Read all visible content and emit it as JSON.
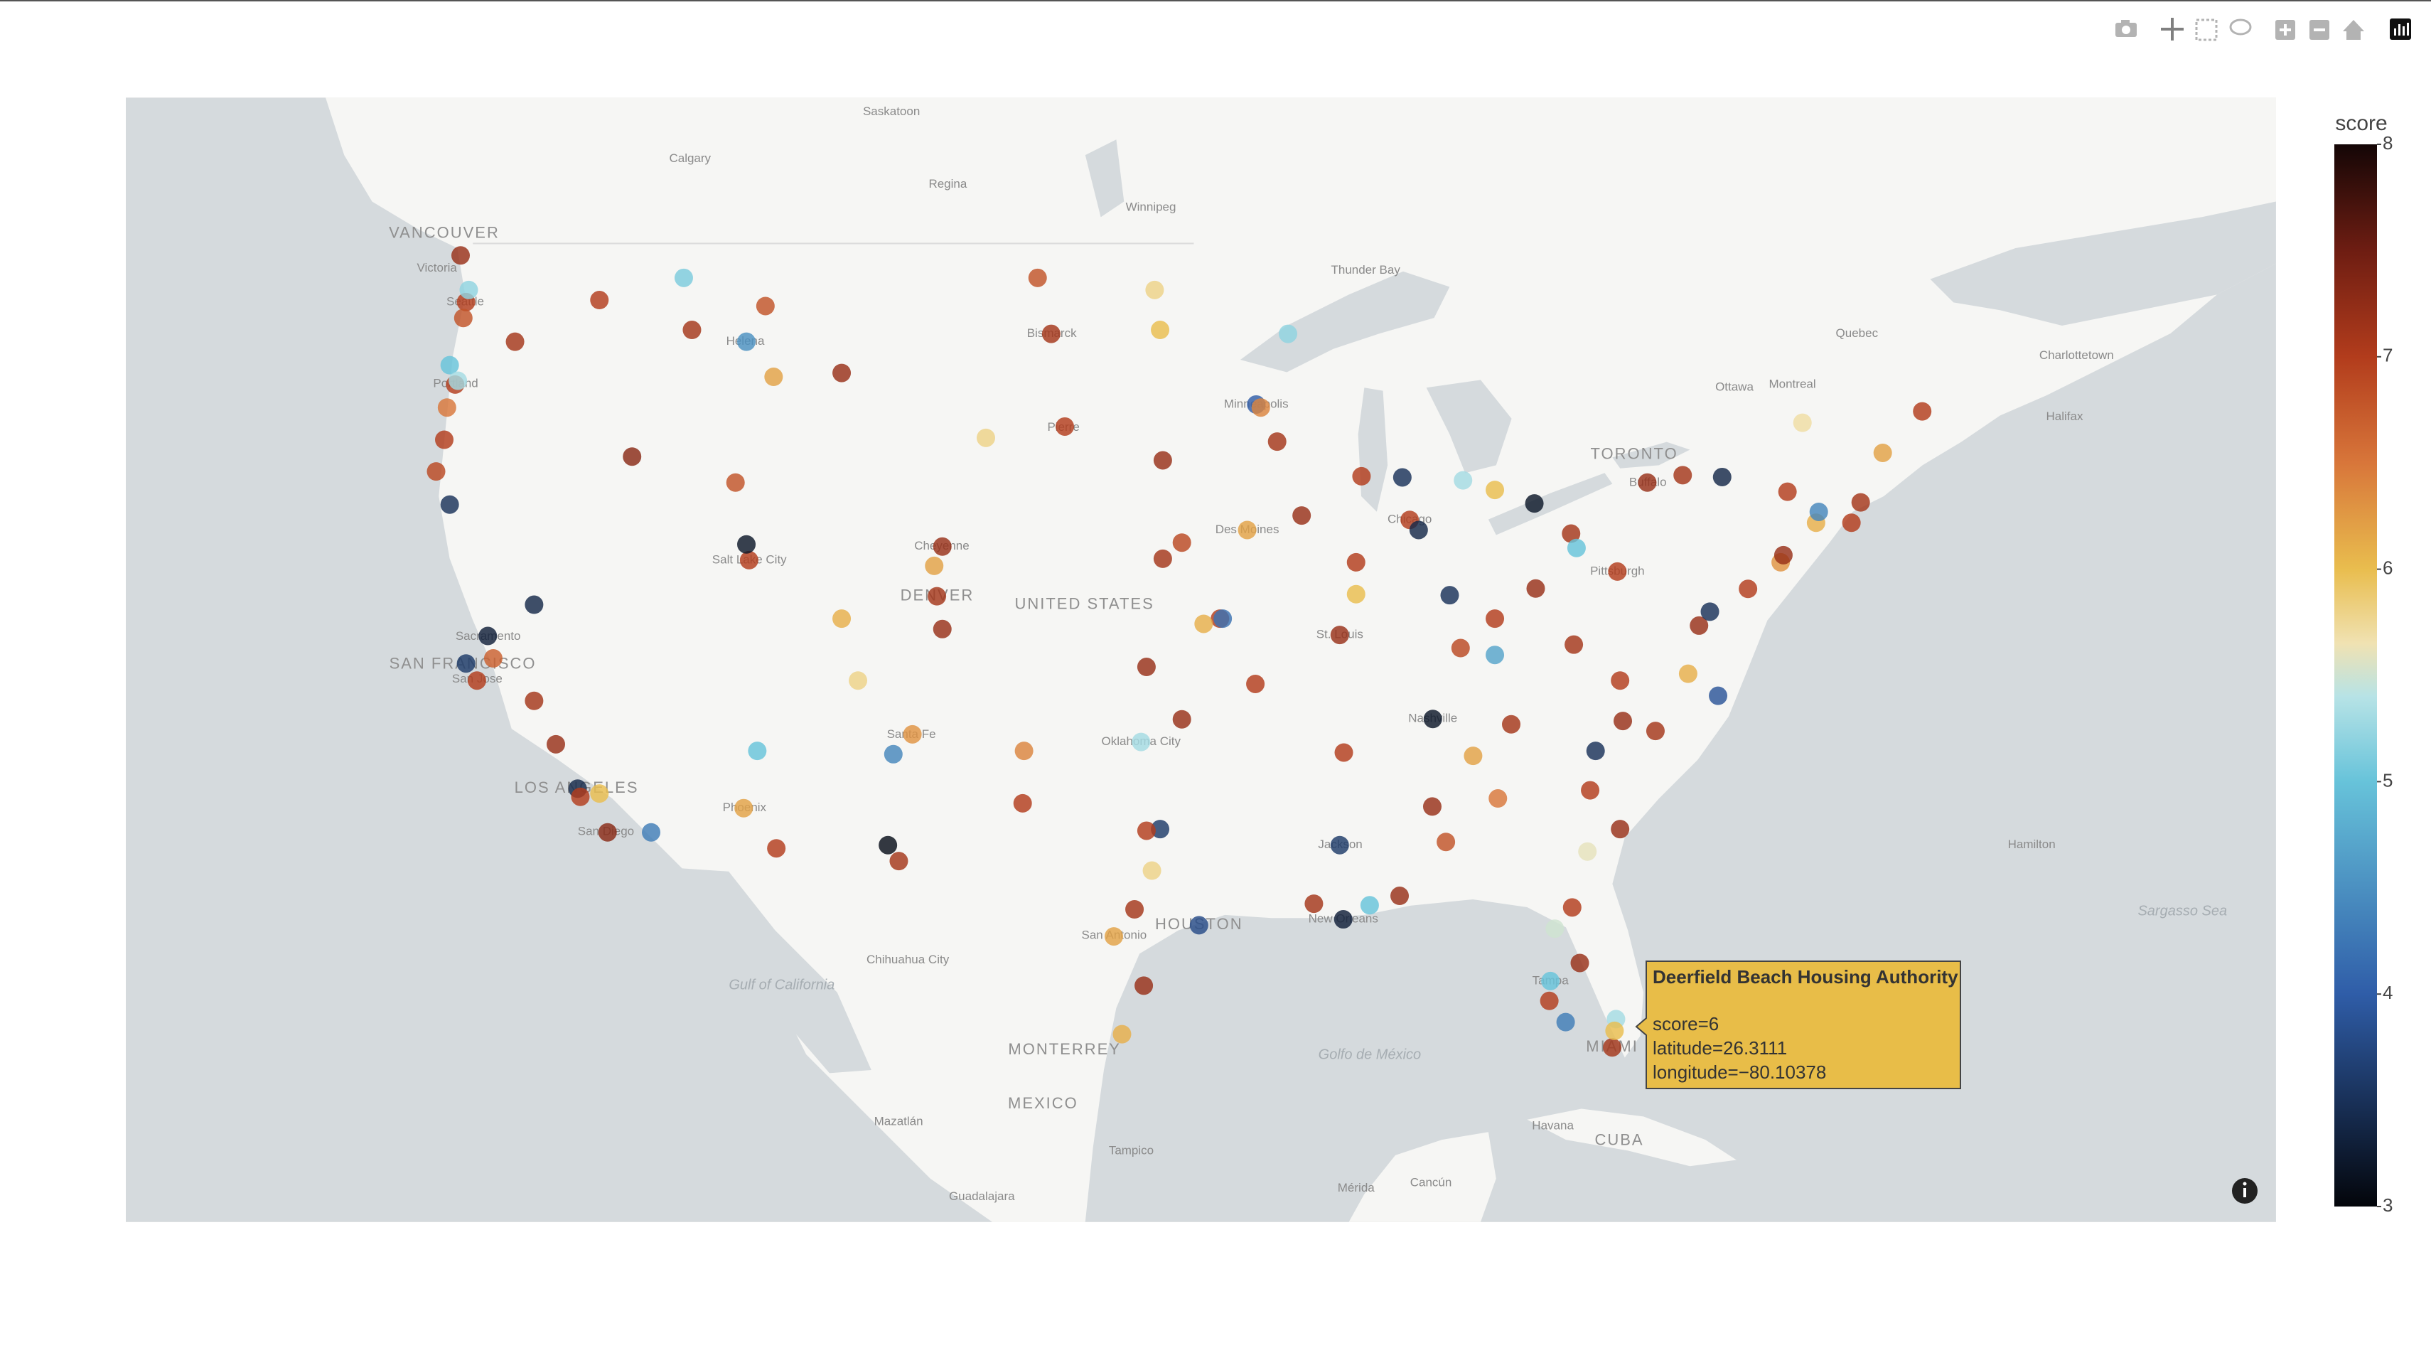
{
  "chart_data": {
    "type": "scattermap",
    "lonlim": [
      -134.8,
      -55.8
    ],
    "latlim": [
      19.8,
      52.46
    ],
    "clim": [
      3,
      8
    ],
    "colorscale": [
      [
        0,
        "#03050a"
      ],
      [
        0.2,
        "#2f5da8"
      ],
      [
        0.4,
        "#67c3da"
      ],
      [
        0.48,
        "#b7e3e6"
      ],
      [
        0.53,
        "#f0e2b2"
      ],
      [
        0.6,
        "#e9bd4e"
      ],
      [
        0.7,
        "#d8763a"
      ],
      [
        0.8,
        "#b23c1c"
      ],
      [
        0.9,
        "#6e1d12"
      ],
      [
        1,
        "#140606"
      ]
    ],
    "colorbar": {
      "title": "score",
      "ticks": [
        3,
        4,
        5,
        6,
        7,
        8
      ]
    },
    "labels": [
      {
        "text": "Saskatoon",
        "lon": -106.67,
        "lat": 52.13
      },
      {
        "text": "Calgary",
        "lon": -114.07,
        "lat": 51.05
      },
      {
        "text": "Regina",
        "lon": -104.6,
        "lat": 50.45
      },
      {
        "text": "Winnipeg",
        "lon": -97.14,
        "lat": 49.9
      },
      {
        "text": "VANCOUVER",
        "lon": -123.1,
        "lat": 49.28
      },
      {
        "text": "Victoria",
        "lon": -123.37,
        "lat": 48.43
      },
      {
        "text": "Seattle",
        "lon": -122.33,
        "lat": 47.6
      },
      {
        "text": "Portland",
        "lon": -122.68,
        "lat": 45.52
      },
      {
        "text": "Helena",
        "lon": -112.04,
        "lat": 46.6
      },
      {
        "text": "Bismarck",
        "lon": -100.78,
        "lat": 46.8
      },
      {
        "text": "Thunder Bay",
        "lon": -89.25,
        "lat": 48.38
      },
      {
        "text": "Quebec",
        "lon": -71.2,
        "lat": 46.8
      },
      {
        "text": "Charlottetown",
        "lon": -63.13,
        "lat": 46.24
      },
      {
        "text": "Ottawa",
        "lon": -75.7,
        "lat": 45.42
      },
      {
        "text": "Montreal",
        "lon": -73.57,
        "lat": 45.5
      },
      {
        "text": "Halifax",
        "lon": -63.57,
        "lat": 44.65
      },
      {
        "text": "TORONTO",
        "lon": -79.38,
        "lat": 43.65
      },
      {
        "text": "Minneapolis",
        "lon": -93.27,
        "lat": 44.98
      },
      {
        "text": "Pierre",
        "lon": -100.35,
        "lat": 44.37
      },
      {
        "text": "Buffalo",
        "lon": -78.88,
        "lat": 42.89
      },
      {
        "text": "Chicago",
        "lon": -87.63,
        "lat": 41.88
      },
      {
        "text": "Salt Lake City",
        "lon": -111.89,
        "lat": 40.76
      },
      {
        "text": "Cheyenne",
        "lon": -104.82,
        "lat": 41.14
      },
      {
        "text": "DENVER",
        "lon": -104.99,
        "lat": 39.74
      },
      {
        "text": "UNITED STATES",
        "lon": -99.58,
        "lat": 39.5
      },
      {
        "text": "Des Moines",
        "lon": -93.6,
        "lat": 41.6
      },
      {
        "text": "Pittsburgh",
        "lon": -80.0,
        "lat": 40.44
      },
      {
        "text": "SAN FRANCISCO",
        "lon": -122.42,
        "lat": 37.77
      },
      {
        "text": "San Jose",
        "lon": -121.89,
        "lat": 37.34
      },
      {
        "text": "Sacramento",
        "lon": -121.49,
        "lat": 38.58
      },
      {
        "text": "St. Louis",
        "lon": -90.2,
        "lat": 38.63
      },
      {
        "text": "Nashville",
        "lon": -86.78,
        "lat": 36.16
      },
      {
        "text": "Oklahoma City",
        "lon": -97.5,
        "lat": 35.47
      },
      {
        "text": "Santa Fe",
        "lon": -105.94,
        "lat": 35.69
      },
      {
        "text": "LOS ANGELES",
        "lon": -118.24,
        "lat": 34.05
      },
      {
        "text": "San Diego",
        "lon": -117.16,
        "lat": 32.72
      },
      {
        "text": "Phoenix",
        "lon": -112.07,
        "lat": 33.45
      },
      {
        "text": "Jackson",
        "lon": -90.18,
        "lat": 32.3
      },
      {
        "text": "New Orleans",
        "lon": -90.07,
        "lat": 29.95
      },
      {
        "text": "HOUSTON",
        "lon": -95.37,
        "lat": 29.76
      },
      {
        "text": "San Antonio",
        "lon": -98.49,
        "lat": 29.42
      },
      {
        "text": "Chihuahua City",
        "lon": -106.07,
        "lat": 28.63
      },
      {
        "text": "Tampa",
        "lon": -82.46,
        "lat": 27.95
      },
      {
        "text": "MIAMI",
        "lon": -80.19,
        "lat": 25.76
      },
      {
        "text": "MONTERREY",
        "lon": -100.31,
        "lat": 25.67
      },
      {
        "text": "MEXICO",
        "lon": -101.1,
        "lat": 23.85
      },
      {
        "text": "Mazatlán",
        "lon": -106.41,
        "lat": 23.25
      },
      {
        "text": "Tampico",
        "lon": -97.86,
        "lat": 22.25
      },
      {
        "text": "Guadalajara",
        "lon": -103.35,
        "lat": 20.67
      },
      {
        "text": "Mérida",
        "lon": -89.6,
        "lat": 20.97
      },
      {
        "text": "Cancún",
        "lon": -86.85,
        "lat": 21.16
      },
      {
        "text": "Havana",
        "lon": -82.37,
        "lat": 23.11
      },
      {
        "text": "CUBA",
        "lon": -79.93,
        "lat": 22.6
      },
      {
        "text": "Hamilton",
        "lon": -64.78,
        "lat": 32.3
      }
    ],
    "water_labels": [
      {
        "text": "Sargasso Sea",
        "lon": -59.24,
        "lat": 30.2
      },
      {
        "text": "Gulf of California",
        "lon": -110.7,
        "lat": 27.8
      },
      {
        "text": "Golfo de México",
        "lon": -89.1,
        "lat": 25.5
      }
    ],
    "points": [
      {
        "lat": 47.6,
        "lon": -122.3,
        "score": 7
      },
      {
        "lat": 47.2,
        "lon": -122.4,
        "score": 6.8
      },
      {
        "lat": 47.9,
        "lon": -122.2,
        "score": 5.2
      },
      {
        "lat": 48.75,
        "lon": -122.5,
        "score": 7.2
      },
      {
        "lat": 46.0,
        "lon": -122.9,
        "score": 5
      },
      {
        "lat": 45.5,
        "lon": -122.7,
        "score": 7
      },
      {
        "lat": 45.6,
        "lon": -122.6,
        "score": 5.3
      },
      {
        "lat": 44.9,
        "lon": -123.0,
        "score": 6.5
      },
      {
        "lat": 44.05,
        "lon": -123.1,
        "score": 7
      },
      {
        "lat": 43.2,
        "lon": -123.4,
        "score": 6.9
      },
      {
        "lat": 42.3,
        "lon": -122.9,
        "score": 3.5
      },
      {
        "lat": 46.6,
        "lon": -120.5,
        "score": 7.1
      },
      {
        "lat": 47.65,
        "lon": -117.4,
        "score": 7
      },
      {
        "lat": 48.2,
        "lon": -114.3,
        "score": 5.1
      },
      {
        "lat": 46.9,
        "lon": -114.0,
        "score": 7.1
      },
      {
        "lat": 46.6,
        "lon": -112.0,
        "score": 4.5
      },
      {
        "lat": 45.7,
        "lon": -111.0,
        "score": 6.2
      },
      {
        "lat": 45.8,
        "lon": -108.5,
        "score": 7.2
      },
      {
        "lat": 43.6,
        "lon": -116.2,
        "score": 7.3
      },
      {
        "lat": 42.9,
        "lon": -112.4,
        "score": 6.8
      },
      {
        "lat": 40.76,
        "lon": -111.9,
        "score": 7.0
      },
      {
        "lat": 41.2,
        "lon": -112.0,
        "score": 3.2
      },
      {
        "lat": 39.5,
        "lon": -119.8,
        "score": 3.4
      },
      {
        "lat": 38.6,
        "lon": -121.5,
        "score": 3.3
      },
      {
        "lat": 37.8,
        "lon": -122.3,
        "score": 3.6
      },
      {
        "lat": 37.3,
        "lon": -121.9,
        "score": 7
      },
      {
        "lat": 36.7,
        "lon": -119.8,
        "score": 7.1
      },
      {
        "lat": 37.95,
        "lon": -121.3,
        "score": 6.7
      },
      {
        "lat": 35.4,
        "lon": -119.0,
        "score": 7.2
      },
      {
        "lat": 34.05,
        "lon": -118.2,
        "score": 3.4
      },
      {
        "lat": 33.8,
        "lon": -118.1,
        "score": 7
      },
      {
        "lat": 33.9,
        "lon": -117.4,
        "score": 6
      },
      {
        "lat": 32.7,
        "lon": -117.1,
        "score": 7.3
      },
      {
        "lat": 32.7,
        "lon": -115.5,
        "score": 4.3
      },
      {
        "lat": 33.45,
        "lon": -112.1,
        "score": 6.2
      },
      {
        "lat": 32.2,
        "lon": -110.9,
        "score": 7
      },
      {
        "lat": 35.2,
        "lon": -111.6,
        "score": 5.0
      },
      {
        "lat": 35.1,
        "lon": -106.6,
        "score": 4.4
      },
      {
        "lat": 35.7,
        "lon": -105.9,
        "score": 6.3
      },
      {
        "lat": 31.8,
        "lon": -106.4,
        "score": 7.1
      },
      {
        "lat": 32.3,
        "lon": -106.8,
        "score": 3.1
      },
      {
        "lat": 39.74,
        "lon": -105.0,
        "score": 7.1
      },
      {
        "lat": 40.6,
        "lon": -105.1,
        "score": 6.2
      },
      {
        "lat": 38.8,
        "lon": -104.8,
        "score": 7.2
      },
      {
        "lat": 41.14,
        "lon": -104.8,
        "score": 7.2
      },
      {
        "lat": 39.1,
        "lon": -108.5,
        "score": 6.1
      },
      {
        "lat": 37.3,
        "lon": -107.9,
        "score": 5.8
      },
      {
        "lat": 44.1,
        "lon": -103.2,
        "score": 5.8
      },
      {
        "lat": 46.8,
        "lon": -100.8,
        "score": 7.1
      },
      {
        "lat": 46.9,
        "lon": -96.8,
        "score": 6.0
      },
      {
        "lat": 48.2,
        "lon": -101.3,
        "score": 6.8
      },
      {
        "lat": 44.4,
        "lon": -100.3,
        "score": 7.0
      },
      {
        "lat": 43.5,
        "lon": -96.7,
        "score": 7.2
      },
      {
        "lat": 41.25,
        "lon": -96.0,
        "score": 6.9
      },
      {
        "lat": 40.8,
        "lon": -96.7,
        "score": 7.1
      },
      {
        "lat": 39.1,
        "lon": -94.6,
        "score": 7
      },
      {
        "lat": 38.95,
        "lon": -95.2,
        "score": 6.1
      },
      {
        "lat": 37.7,
        "lon": -97.3,
        "score": 7.2
      },
      {
        "lat": 35.47,
        "lon": -97.5,
        "score": 5.3
      },
      {
        "lat": 36.15,
        "lon": -96.0,
        "score": 7.2
      },
      {
        "lat": 32.8,
        "lon": -96.8,
        "score": 3.6
      },
      {
        "lat": 32.75,
        "lon": -97.3,
        "score": 7
      },
      {
        "lat": 30.27,
        "lon": -97.74,
        "score": 7.1
      },
      {
        "lat": 29.76,
        "lon": -95.37,
        "score": 3.8
      },
      {
        "lat": 29.4,
        "lon": -98.5,
        "score": 6.2
      },
      {
        "lat": 27.8,
        "lon": -97.4,
        "score": 7.2
      },
      {
        "lat": 26.2,
        "lon": -98.2,
        "score": 6.1
      },
      {
        "lat": 31.5,
        "lon": -97.1,
        "score": 5.8
      },
      {
        "lat": 33.6,
        "lon": -101.85,
        "score": 7
      },
      {
        "lat": 35.2,
        "lon": -101.8,
        "score": 6.4
      },
      {
        "lat": 44.98,
        "lon": -93.27,
        "score": 4
      },
      {
        "lat": 44.9,
        "lon": -93.1,
        "score": 6.4
      },
      {
        "lat": 46.8,
        "lon": -92.1,
        "score": 5.2
      },
      {
        "lat": 44.0,
        "lon": -92.5,
        "score": 7.1
      },
      {
        "lat": 43.07,
        "lon": -89.4,
        "score": 7
      },
      {
        "lat": 43.04,
        "lon": -87.9,
        "score": 3.5
      },
      {
        "lat": 41.88,
        "lon": -87.63,
        "score": 7
      },
      {
        "lat": 41.6,
        "lon": -87.3,
        "score": 3.4
      },
      {
        "lat": 41.6,
        "lon": -93.6,
        "score": 6.2
      },
      {
        "lat": 42.0,
        "lon": -91.6,
        "score": 7.2
      },
      {
        "lat": 40.7,
        "lon": -89.6,
        "score": 7
      },
      {
        "lat": 39.8,
        "lon": -89.6,
        "score": 6.0
      },
      {
        "lat": 38.63,
        "lon": -90.2,
        "score": 7.2
      },
      {
        "lat": 39.1,
        "lon": -94.5,
        "score": 4.2
      },
      {
        "lat": 37.2,
        "lon": -93.3,
        "score": 7
      },
      {
        "lat": 36.16,
        "lon": -86.78,
        "score": 3.2
      },
      {
        "lat": 35.15,
        "lon": -90.05,
        "score": 7
      },
      {
        "lat": 36.0,
        "lon": -83.9,
        "score": 7.1
      },
      {
        "lat": 35.05,
        "lon": -85.3,
        "score": 6.2
      },
      {
        "lat": 33.5,
        "lon": -86.8,
        "score": 7.2
      },
      {
        "lat": 32.4,
        "lon": -86.3,
        "score": 6.8
      },
      {
        "lat": 32.3,
        "lon": -90.2,
        "score": 3.6
      },
      {
        "lat": 30.45,
        "lon": -91.15,
        "score": 7.1
      },
      {
        "lat": 29.95,
        "lon": -90.07,
        "score": 3.3
      },
      {
        "lat": 30.7,
        "lon": -88.0,
        "score": 7.2
      },
      {
        "lat": 30.4,
        "lon": -89.1,
        "score": 5.0
      },
      {
        "lat": 33.75,
        "lon": -84.39,
        "score": 6.5
      },
      {
        "lat": 32.1,
        "lon": -81.1,
        "score": 5.6
      },
      {
        "lat": 32.8,
        "lon": -79.9,
        "score": 7.2
      },
      {
        "lat": 34.0,
        "lon": -81.0,
        "score": 7
      },
      {
        "lat": 35.2,
        "lon": -80.8,
        "score": 3.5
      },
      {
        "lat": 35.8,
        "lon": -78.6,
        "score": 7.1
      },
      {
        "lat": 36.1,
        "lon": -79.8,
        "score": 7.2
      },
      {
        "lat": 36.85,
        "lon": -76.3,
        "score": 3.9
      },
      {
        "lat": 37.5,
        "lon": -77.4,
        "score": 6.1
      },
      {
        "lat": 38.9,
        "lon": -77.0,
        "score": 7.2
      },
      {
        "lat": 39.3,
        "lon": -76.6,
        "score": 3.5
      },
      {
        "lat": 39.95,
        "lon": -75.2,
        "score": 7
      },
      {
        "lat": 40.7,
        "lon": -74.0,
        "score": 6.3
      },
      {
        "lat": 40.9,
        "lon": -73.9,
        "score": 7.2
      },
      {
        "lat": 41.8,
        "lon": -72.7,
        "score": 6.1
      },
      {
        "lat": 42.36,
        "lon": -71.06,
        "score": 7.1
      },
      {
        "lat": 42.1,
        "lon": -72.6,
        "score": 4.4
      },
      {
        "lat": 41.8,
        "lon": -71.4,
        "score": 7
      },
      {
        "lat": 43.1,
        "lon": -77.6,
        "score": 7.1
      },
      {
        "lat": 42.9,
        "lon": -78.9,
        "score": 7.2
      },
      {
        "lat": 43.05,
        "lon": -76.15,
        "score": 3.4
      },
      {
        "lat": 42.65,
        "lon": -73.75,
        "score": 7
      },
      {
        "lat": 40.44,
        "lon": -80.0,
        "score": 7
      },
      {
        "lat": 41.5,
        "lon": -81.7,
        "score": 7.1
      },
      {
        "lat": 41.1,
        "lon": -81.5,
        "score": 5.0
      },
      {
        "lat": 39.96,
        "lon": -83.0,
        "score": 7.2
      },
      {
        "lat": 39.1,
        "lon": -84.5,
        "score": 7
      },
      {
        "lat": 39.77,
        "lon": -86.16,
        "score": 3.5
      },
      {
        "lat": 42.33,
        "lon": -83.05,
        "score": 3.2
      },
      {
        "lat": 42.7,
        "lon": -84.5,
        "score": 6
      },
      {
        "lat": 42.96,
        "lon": -85.67,
        "score": 5.3
      },
      {
        "lat": 38.25,
        "lon": -85.76,
        "score": 6.9
      },
      {
        "lat": 38.05,
        "lon": -84.5,
        "score": 4.7
      },
      {
        "lat": 37.3,
        "lon": -79.9,
        "score": 7
      },
      {
        "lat": 38.35,
        "lon": -81.6,
        "score": 7.1
      },
      {
        "lat": 30.33,
        "lon": -81.66,
        "score": 7
      },
      {
        "lat": 29.65,
        "lon": -82.3,
        "score": 5.5
      },
      {
        "lat": 28.54,
        "lon": -81.38,
        "score": 7.2
      },
      {
        "lat": 27.95,
        "lon": -82.46,
        "score": 5.0
      },
      {
        "lat": 27.3,
        "lon": -82.5,
        "score": 7
      },
      {
        "lat": 26.6,
        "lon": -81.9,
        "score": 4.3
      },
      {
        "lat": 25.76,
        "lon": -80.19,
        "score": 7.1
      },
      {
        "lat": 26.7,
        "lon": -80.05,
        "score": 5.3
      },
      {
        "lat": 44.5,
        "lon": -73.2,
        "score": 5.7
      },
      {
        "lat": 43.7,
        "lon": -70.25,
        "score": 6.2
      },
      {
        "lat": 44.8,
        "lon": -68.8,
        "score": 7.0
      },
      {
        "lat": 47.5,
        "lon": -111.3,
        "score": 6.8
      },
      {
        "lat": 47.9,
        "lon": -97.0,
        "score": 5.8
      },
      {
        "lat": 26.3111,
        "lon": -80.10378,
        "score": 6
      }
    ],
    "hover": {
      "title": "Deerfield Beach Housing Authority",
      "lines": [
        "score=6",
        "latitude=26.3111",
        "longitude=−80.10378"
      ]
    }
  }
}
